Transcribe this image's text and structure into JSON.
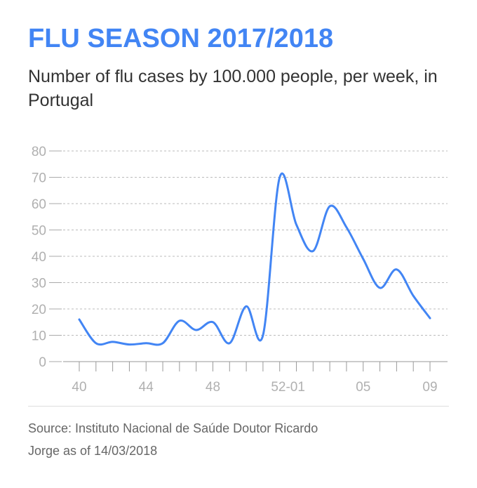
{
  "title": "FLU SEASON 2017/2018",
  "subtitle": "Number of flu cases by 100.000 people, per week, in Portugal",
  "source": "Source: Instituto Nacional de Saúde Doutor Ricardo Jorge as of 14/03/2018",
  "colors": {
    "line": "#4285f4",
    "title": "#4285f4",
    "grid": "#bbbbbb",
    "tick_text": "#b0b0b0"
  },
  "chart_data": {
    "type": "line",
    "title": "FLU SEASON 2017/2018",
    "xlabel": "",
    "ylabel": "",
    "ylim": [
      0,
      80
    ],
    "yticks": [
      0,
      10,
      20,
      30,
      40,
      50,
      60,
      70,
      80
    ],
    "x_weeks": [
      "40",
      "41",
      "42",
      "43",
      "44",
      "45",
      "46",
      "47",
      "48",
      "49",
      "50",
      "51",
      "52",
      "01",
      "02",
      "03",
      "04",
      "05",
      "06",
      "07",
      "08",
      "09"
    ],
    "xtick_labels": [
      "40",
      "44",
      "48",
      "52-01",
      "05",
      "09"
    ],
    "grid": "horizontal dashed",
    "series": [
      {
        "values": [
          16,
          7,
          7.5,
          6.5,
          7,
          7,
          15.5,
          12,
          15,
          7,
          21,
          10,
          70,
          52,
          42,
          59,
          51,
          39,
          28,
          35,
          25,
          16.5
        ]
      }
    ]
  }
}
